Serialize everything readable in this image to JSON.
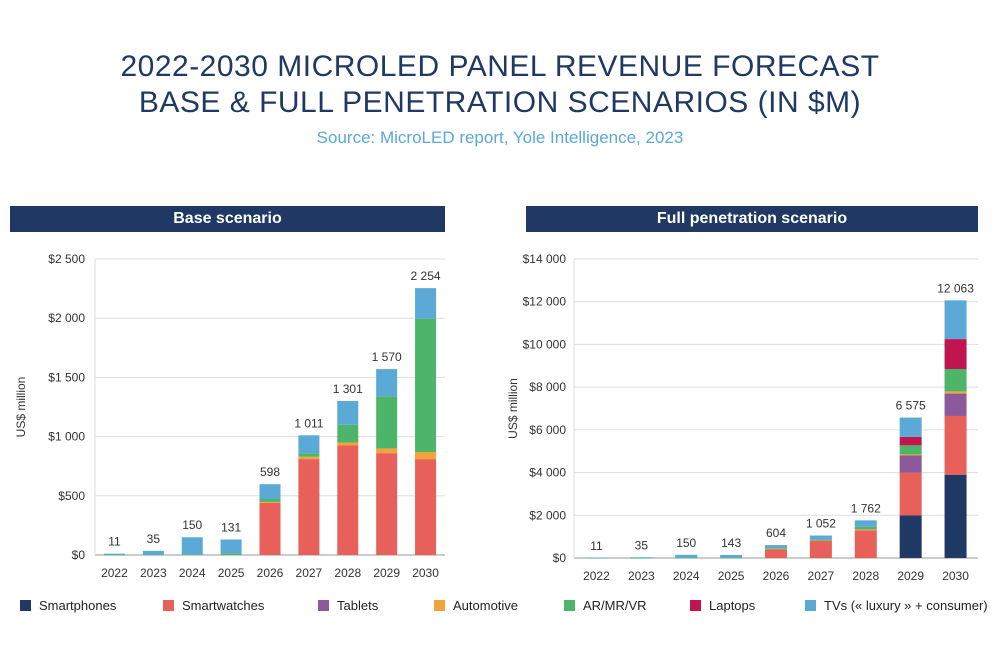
{
  "title_line1": "2022-2030 MICROLED PANEL REVENUE FORECAST",
  "title_line2": "BASE & FULL PENETRATION SCENARIOS (IN $M)",
  "subtitle": "Source: MicroLED report, Yole Intelligence, 2023",
  "legend": [
    {
      "label": "Smartphones",
      "color": "#1f3864"
    },
    {
      "label": "Smartwatches",
      "color": "#e8605a"
    },
    {
      "label": "Tablets",
      "color": "#8c5a9a"
    },
    {
      "label": "Automotive",
      "color": "#f2a43a"
    },
    {
      "label": "AR/MR/VR",
      "color": "#4db56a"
    },
    {
      "label": "Laptops",
      "color": "#c0154e"
    },
    {
      "label": "TVs (« luxury » + consumer)",
      "color": "#5aa9d6"
    }
  ],
  "chart_data": [
    {
      "type": "bar",
      "stacked": true,
      "panel_title": "Base scenario",
      "ylabel": "US$ million",
      "ylim": [
        0,
        2500
      ],
      "yticks": [
        0,
        500,
        1000,
        1500,
        2000,
        2500
      ],
      "ytick_labels": [
        "$0",
        "$500",
        "$1 000",
        "$1 500",
        "$2 000",
        "$2 500"
      ],
      "categories": [
        "2022",
        "2023",
        "2024",
        "2025",
        "2026",
        "2027",
        "2028",
        "2029",
        "2030"
      ],
      "totals": [
        11,
        35,
        150,
        131,
        598,
        1011,
        1301,
        1570,
        2254
      ],
      "total_labels": [
        "11",
        "35",
        "150",
        "131",
        "598",
        "1 011",
        "1 301",
        "1 570",
        "2 254"
      ],
      "grid": true,
      "series": [
        {
          "name": "Smartphones",
          "color": "#1f3864",
          "values": [
            0,
            0,
            0,
            0,
            0,
            0,
            0,
            0,
            0
          ]
        },
        {
          "name": "Smartwatches",
          "color": "#e8605a",
          "values": [
            0,
            0,
            0,
            0,
            440,
            810,
            925,
            860,
            810
          ]
        },
        {
          "name": "Tablets",
          "color": "#8c5a9a",
          "values": [
            0,
            0,
            0,
            0,
            0,
            0,
            0,
            0,
            0
          ]
        },
        {
          "name": "Automotive",
          "color": "#f2a43a",
          "values": [
            0,
            0,
            0,
            0,
            8,
            20,
            25,
            40,
            60
          ]
        },
        {
          "name": "AR/MR/VR",
          "color": "#4db56a",
          "values": [
            2,
            2,
            5,
            15,
            25,
            30,
            150,
            440,
            1125
          ]
        },
        {
          "name": "Laptops",
          "color": "#c0154e",
          "values": [
            0,
            0,
            0,
            0,
            0,
            0,
            0,
            0,
            0
          ]
        },
        {
          "name": "TVs (« luxury » + consumer)",
          "color": "#5aa9d6",
          "values": [
            9,
            33,
            145,
            116,
            125,
            151,
            201,
            230,
            259
          ]
        }
      ]
    },
    {
      "type": "bar",
      "stacked": true,
      "panel_title": "Full penetration scenario",
      "ylabel": "US$ million",
      "ylim": [
        0,
        14000
      ],
      "yticks": [
        0,
        2000,
        4000,
        6000,
        8000,
        10000,
        12000,
        14000
      ],
      "ytick_labels": [
        "$0",
        "$2 000",
        "$4 000",
        "$6 000",
        "$8 000",
        "$10 000",
        "$12 000",
        "$14 000"
      ],
      "categories": [
        "2022",
        "2023",
        "2024",
        "2025",
        "2026",
        "2027",
        "2028",
        "2029",
        "2030"
      ],
      "totals": [
        11,
        35,
        150,
        143,
        604,
        1052,
        1762,
        6575,
        12063
      ],
      "total_labels": [
        "11",
        "35",
        "150",
        "143",
        "604",
        "1 052",
        "1 762",
        "6 575",
        "12 063"
      ],
      "grid": true,
      "series": [
        {
          "name": "Smartphones",
          "color": "#1f3864",
          "values": [
            0,
            0,
            0,
            0,
            0,
            0,
            0,
            2000,
            3900
          ]
        },
        {
          "name": "Smartwatches",
          "color": "#e8605a",
          "values": [
            0,
            0,
            0,
            0,
            420,
            800,
            1300,
            2000,
            2750
          ]
        },
        {
          "name": "Tablets",
          "color": "#8c5a9a",
          "values": [
            0,
            0,
            0,
            0,
            0,
            0,
            0,
            800,
            1050
          ]
        },
        {
          "name": "Automotive",
          "color": "#f2a43a",
          "values": [
            0,
            0,
            0,
            0,
            10,
            20,
            40,
            50,
            100
          ]
        },
        {
          "name": "AR/MR/VR",
          "color": "#4db56a",
          "values": [
            2,
            2,
            5,
            10,
            24,
            30,
            120,
            425,
            1050
          ]
        },
        {
          "name": "Laptops",
          "color": "#c0154e",
          "values": [
            0,
            0,
            0,
            0,
            0,
            0,
            0,
            400,
            1400
          ]
        },
        {
          "name": "TVs (« luxury » + consumer)",
          "color": "#5aa9d6",
          "values": [
            9,
            33,
            145,
            133,
            150,
            202,
            302,
            900,
            1813
          ]
        }
      ]
    }
  ]
}
